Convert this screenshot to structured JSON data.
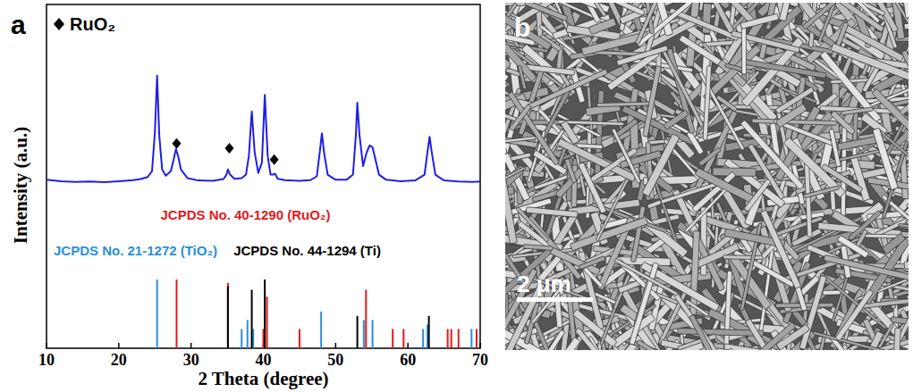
{
  "chart_data": {
    "type": "line",
    "panel_label": "a",
    "x_label": "2 Theta (degree)",
    "y_label": "Intensity (a.u.)",
    "xlim": [
      10,
      70
    ],
    "xticks": [
      10,
      20,
      30,
      40,
      50,
      60,
      70
    ],
    "ylim": [
      0,
      100
    ],
    "tick_labels": "x",
    "legend": "upper left",
    "series": [
      {
        "type": "line",
        "color": "#1f1fe6",
        "x": [
          10,
          12,
          14,
          16,
          18,
          20,
          22,
          23,
          24,
          24.6,
          25,
          25.3,
          25.6,
          26,
          26.5,
          27.2,
          27.6,
          27.9,
          28.2,
          28.6,
          29.5,
          31,
          33,
          34.5,
          34.9,
          35.1,
          35.4,
          36,
          37,
          37.6,
          38,
          38.4,
          38.8,
          39.3,
          39.8,
          40.2,
          40.6,
          41,
          41.3,
          41.6,
          42,
          43,
          45,
          46.5,
          47.4,
          47.8,
          48.1,
          48.4,
          48.9,
          50,
          51.5,
          52.4,
          52.8,
          53.0,
          53.3,
          53.8,
          54.3,
          54.7,
          55.1,
          55.5,
          56,
          57,
          59,
          61,
          62.3,
          62.7,
          63,
          63.3,
          63.8,
          65,
          67,
          69,
          70
        ],
        "values": [
          49,
          48.6,
          48.4,
          48.5,
          48.3,
          48.6,
          48.9,
          49.2,
          49.8,
          51.5,
          63,
          79.3,
          62,
          52,
          50.2,
          51.5,
          55,
          57.9,
          56,
          52,
          49.5,
          48.8,
          48.7,
          49.2,
          50.5,
          52,
          50.5,
          49.3,
          49.5,
          50.5,
          56,
          68.9,
          57,
          51,
          54,
          73.7,
          56,
          50.5,
          50.5,
          50.8,
          49.3,
          48.9,
          48.7,
          48.9,
          50,
          57,
          62.5,
          57,
          50.5,
          49,
          49,
          50.5,
          62,
          71.4,
          62,
          53,
          57,
          59,
          58.5,
          55,
          50.5,
          49,
          48.6,
          48.8,
          50.5,
          57,
          61.5,
          57,
          50.5,
          48.8,
          48.5,
          48.4,
          48.5
        ]
      },
      {
        "name": "JCPDS No. 40-1290 (RuO₂)",
        "type": "stick",
        "color": "#e31a1c",
        "x": [
          28.0,
          35.1,
          40.0,
          40.5,
          45.0,
          54.2,
          57.9,
          59.4,
          65.5,
          66.0,
          67.0,
          69.5
        ],
        "values": [
          20,
          19,
          5.6,
          15,
          5.6,
          17,
          5.6,
          5.6,
          5.6,
          5.6,
          5.6,
          5.6
        ]
      },
      {
        "name": "JCPDS No. 21-1272 (TiO₂)",
        "type": "stick",
        "color": "#2b8fd6",
        "x": [
          25.3,
          37.0,
          37.8,
          38.6,
          48.0,
          53.9,
          55.1,
          62.1,
          62.7,
          68.8
        ],
        "values": [
          20,
          5.6,
          8.2,
          5.6,
          10.7,
          8.2,
          8.2,
          5.6,
          6.9,
          5.6
        ]
      },
      {
        "name": "JCPDS No. 44-1294 (Ti)",
        "type": "stick",
        "color": "#000000",
        "x": [
          35.1,
          38.4,
          40.2,
          53.0,
          62.9
        ],
        "values": [
          18,
          17,
          20,
          9.4,
          9.4
        ]
      },
      {
        "name": "RuO₂",
        "type": "scatter",
        "marker": "diamond",
        "color": "#000000",
        "x": [
          28,
          35.3,
          41.5
        ],
        "values": [
          57.5,
          56.1,
          52.8
        ]
      }
    ]
  },
  "image": {
    "panel_label": "b",
    "scale_bar_label": "2 μm"
  }
}
